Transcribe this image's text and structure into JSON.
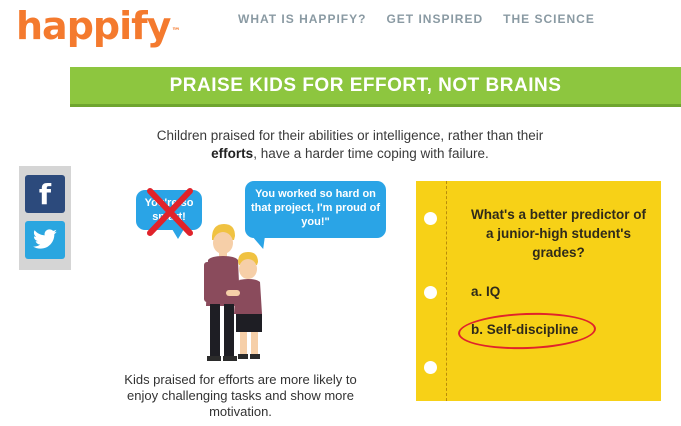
{
  "brand": {
    "logo_text": "happify",
    "tm": "™",
    "accent": "#f47a2e"
  },
  "nav": [
    {
      "label": "WHAT IS HAPPIFY?"
    },
    {
      "label": "GET INSPIRED"
    },
    {
      "label": "THE SCIENCE"
    }
  ],
  "banner": {
    "title": "PRAISE KIDS FOR EFFORT, NOT BRAINS",
    "color": "#8dc63f"
  },
  "intro": {
    "part1": "Children praised for their abilities or intelligence, rather than their",
    "bold": "efforts",
    "part2": ", have a harder time coping with failure."
  },
  "share": {
    "facebook_icon": "facebook-icon",
    "twitter_icon": "twitter-icon",
    "facebook_glyph": "f"
  },
  "illustration": {
    "bubble_left": "You're so smart!",
    "bubble_right": "You worked so hard on that project, I'm proud of you!\"",
    "bubble_color": "#2aa4e6"
  },
  "caption": "Kids praised for efforts are more likely to enjoy challenging tasks and show more motivation.",
  "quiz": {
    "question": "What's a better predictor of a junior-high student's grades?",
    "option_a": "a. IQ",
    "option_b": "b. Self-discipline",
    "note_color": "#f7d117",
    "highlight_color": "#e0232b"
  }
}
